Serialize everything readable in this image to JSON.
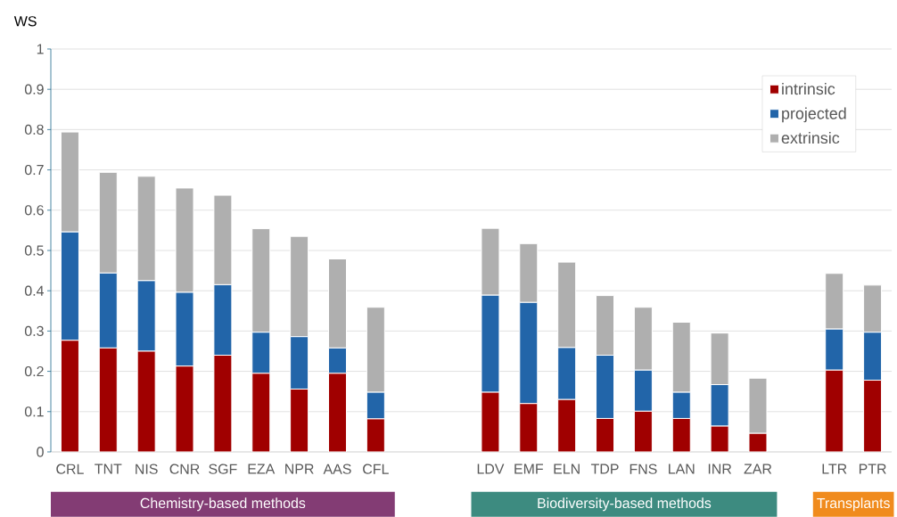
{
  "chart_data": {
    "type": "bar",
    "stacked": true,
    "ylabel": "WS",
    "categories": [
      "CRL",
      "TNT",
      "NIS",
      "CNR",
      "SGF",
      "EZA",
      "NPR",
      "AAS",
      "CFL",
      null,
      null,
      "LDV",
      "EMF",
      "ELN",
      "TDP",
      "FNS",
      "LAN",
      "INR",
      "ZAR",
      null,
      "LTR",
      "PTR"
    ],
    "series": [
      {
        "name": "intrinsic",
        "color": "#a00000",
        "values": [
          0.277,
          0.258,
          0.25,
          0.213,
          0.24,
          0.195,
          0.156,
          0.195,
          0.082,
          null,
          null,
          0.148,
          0.12,
          0.13,
          0.083,
          0.101,
          0.083,
          0.064,
          0.046,
          null,
          0.203,
          0.178
        ]
      },
      {
        "name": "projected",
        "color": "#2265a9",
        "values": [
          0.269,
          0.186,
          0.175,
          0.183,
          0.175,
          0.102,
          0.13,
          0.063,
          0.066,
          null,
          null,
          0.241,
          0.251,
          0.129,
          0.157,
          0.102,
          0.065,
          0.103,
          0,
          null,
          0.102,
          0.119
        ]
      },
      {
        "name": "extrinsic",
        "color": "#afafaf",
        "values": [
          0.248,
          0.25,
          0.259,
          0.259,
          0.222,
          0.257,
          0.249,
          0.221,
          0.211,
          null,
          null,
          0.166,
          0.146,
          0.212,
          0.148,
          0.156,
          0.174,
          0.128,
          0.137,
          null,
          0.138,
          0.117
        ]
      }
    ],
    "ylim": [
      0,
      1
    ],
    "yticks": [
      0,
      0.1,
      0.2,
      0.3,
      0.4,
      0.5,
      0.6,
      0.7,
      0.8,
      0.9,
      1
    ],
    "grid": "y",
    "legend": "top right",
    "annotations": [
      "Chemistry-based methods",
      "Biodiversity-based methods",
      "Transplants"
    ]
  }
}
